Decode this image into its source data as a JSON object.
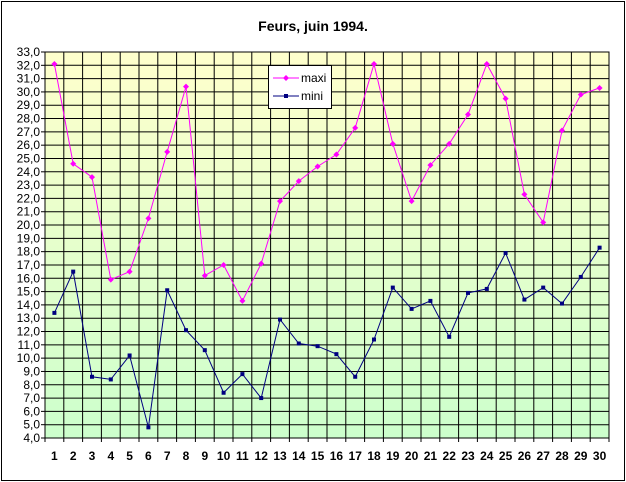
{
  "chart_data": {
    "type": "line",
    "title": "Feurs, juin 1994.",
    "xlabel": "",
    "ylabel": "",
    "x": [
      1,
      2,
      3,
      4,
      5,
      6,
      7,
      8,
      9,
      10,
      11,
      12,
      13,
      14,
      15,
      16,
      17,
      18,
      19,
      20,
      21,
      22,
      23,
      24,
      25,
      26,
      27,
      28,
      29,
      30
    ],
    "ylim": [
      4.0,
      33.0
    ],
    "ytick_step": 1.0,
    "y_ticks": [
      "4,0",
      "5,0",
      "6,0",
      "7,0",
      "8,0",
      "9,0",
      "10,0",
      "11,0",
      "12,0",
      "13,0",
      "14,0",
      "15,0",
      "16,0",
      "17,0",
      "18,0",
      "19,0",
      "20,0",
      "21,0",
      "22,0",
      "23,0",
      "24,0",
      "25,0",
      "26,0",
      "27,0",
      "28,0",
      "29,0",
      "30,0",
      "31,0",
      "32,0",
      "33,0"
    ],
    "grid": true,
    "legend_position": "top-center",
    "series": [
      {
        "name": "maxi",
        "color": "#ff00ff",
        "marker": "diamond",
        "values": [
          32.1,
          24.6,
          23.6,
          15.9,
          16.5,
          20.5,
          25.5,
          30.4,
          16.2,
          17.0,
          14.3,
          17.1,
          21.8,
          23.3,
          24.4,
          25.3,
          27.3,
          32.1,
          26.1,
          21.8,
          24.5,
          26.1,
          28.3,
          32.1,
          29.5,
          22.3,
          20.2,
          27.1,
          29.8,
          30.3
        ]
      },
      {
        "name": "mini",
        "color": "#000080",
        "marker": "square",
        "values": [
          13.4,
          16.5,
          8.6,
          8.4,
          10.2,
          4.8,
          15.1,
          12.1,
          10.6,
          7.4,
          8.8,
          7.0,
          12.9,
          11.1,
          10.9,
          10.3,
          8.6,
          11.4,
          15.3,
          13.7,
          14.3,
          11.6,
          14.9,
          15.2,
          17.9,
          14.4,
          15.3,
          14.1,
          16.1,
          18.3
        ]
      }
    ],
    "background_gradient": [
      "#ffffcc",
      "#ccffcc"
    ]
  }
}
